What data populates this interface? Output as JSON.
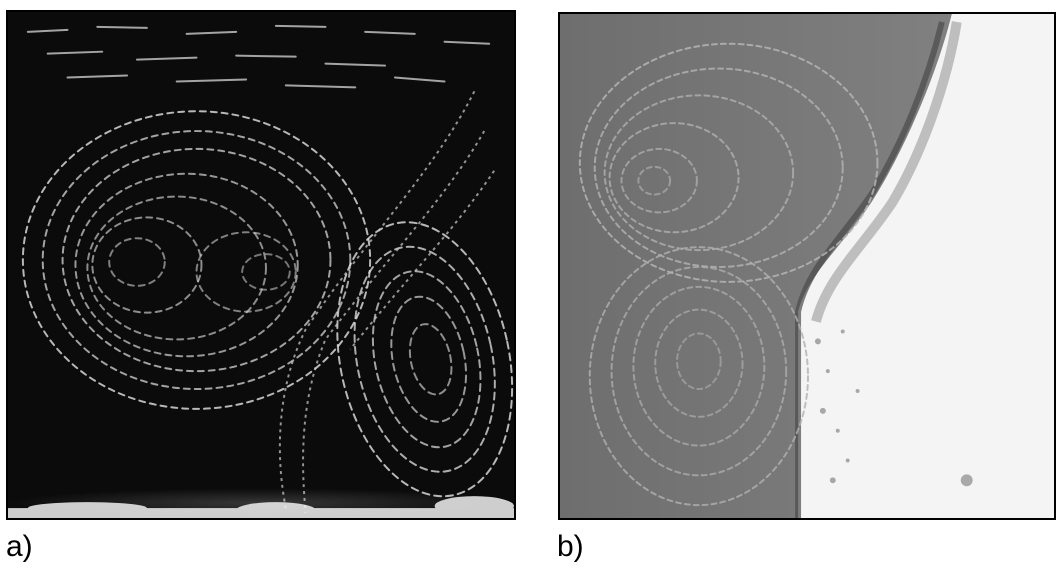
{
  "figure": {
    "panel_a": {
      "label": "a)",
      "background": "#0b0b0b",
      "streak_color": "#e8e8e8"
    },
    "panel_b": {
      "label": "b)",
      "background": "#7a7a7a",
      "streak_color": "#b8b8b8",
      "bright_region": "#f4f4f4"
    }
  }
}
